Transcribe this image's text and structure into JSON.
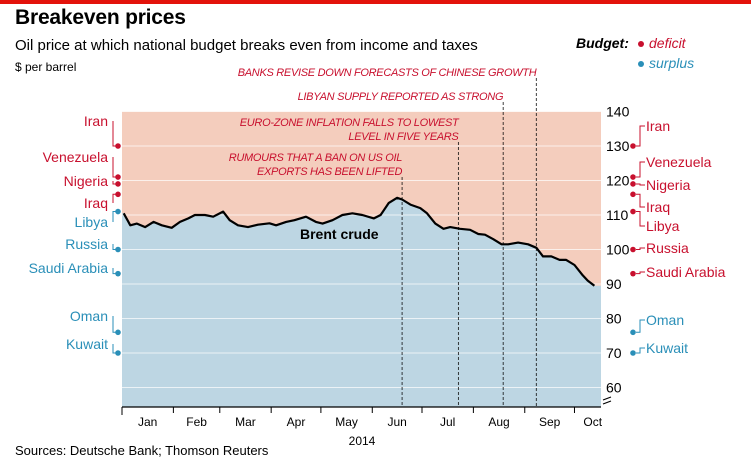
{
  "title": "Breakeven prices",
  "subtitle": "Oil price at which national budget breaks even from income and taxes",
  "units": "$ per barrel",
  "source": "Sources: Deutsche Bank; Thomson Reuters",
  "legend": {
    "title": "Budget:",
    "items": [
      {
        "label": "deficit",
        "color": "#c8102e"
      },
      {
        "label": "surplus",
        "color": "#2a8fb8"
      }
    ]
  },
  "chart_data": {
    "type": "line",
    "title": "Breakeven prices",
    "ylim": [
      55,
      140
    ],
    "yticks": [
      60,
      70,
      80,
      90,
      100,
      110,
      120,
      130,
      140
    ],
    "y_axis_broken": true,
    "x_year_label": "2014",
    "x_months": [
      "Jan",
      "Feb",
      "Mar",
      "Apr",
      "May",
      "Jun",
      "Jul",
      "Aug",
      "Sep",
      "Oct"
    ],
    "series": [
      {
        "name": "Brent crude",
        "x": [
          "2014-01-02",
          "2014-01-06",
          "2014-01-10",
          "2014-01-15",
          "2014-01-20",
          "2014-01-25",
          "2014-01-31",
          "2014-02-05",
          "2014-02-10",
          "2014-02-14",
          "2014-02-20",
          "2014-02-25",
          "2014-03-03",
          "2014-03-07",
          "2014-03-12",
          "2014-03-18",
          "2014-03-24",
          "2014-03-31",
          "2014-04-04",
          "2014-04-10",
          "2014-04-15",
          "2014-04-22",
          "2014-04-28",
          "2014-05-02",
          "2014-05-08",
          "2014-05-14",
          "2014-05-20",
          "2014-05-26",
          "2014-06-02",
          "2014-06-06",
          "2014-06-11",
          "2014-06-16",
          "2014-06-19",
          "2014-06-24",
          "2014-06-30",
          "2014-07-04",
          "2014-07-09",
          "2014-07-14",
          "2014-07-18",
          "2014-07-24",
          "2014-07-30",
          "2014-08-04",
          "2014-08-08",
          "2014-08-13",
          "2014-08-18",
          "2014-08-22",
          "2014-08-28",
          "2014-09-03",
          "2014-09-08",
          "2014-09-12",
          "2014-09-17",
          "2014-09-22",
          "2014-09-26",
          "2014-10-01",
          "2014-10-06",
          "2014-10-09",
          "2014-10-13"
        ],
        "y": [
          110.5,
          107.0,
          107.5,
          106.5,
          108.0,
          107.0,
          106.3,
          108.0,
          109.0,
          110.0,
          110.0,
          109.5,
          111.0,
          108.5,
          107.0,
          106.5,
          107.2,
          107.6,
          107.0,
          108.0,
          108.5,
          109.5,
          108.0,
          107.5,
          108.5,
          110.0,
          110.5,
          110.0,
          109.0,
          110.0,
          113.5,
          115.0,
          114.5,
          113.0,
          112.0,
          110.5,
          107.5,
          106.0,
          106.5,
          106.0,
          105.7,
          104.5,
          104.3,
          103.0,
          101.5,
          101.5,
          102.0,
          101.5,
          100.5,
          98.0,
          98.0,
          97.0,
          97.0,
          95.5,
          92.5,
          91.0,
          89.5
        ]
      }
    ],
    "breakeven": {
      "label_deficit": "deficit",
      "label_surplus": "surplus",
      "countries_left": [
        {
          "name": "Iran",
          "value": 130,
          "status": "deficit"
        },
        {
          "name": "Venezuela",
          "value": 121,
          "status": "deficit"
        },
        {
          "name": "Nigeria",
          "value": 119,
          "status": "deficit"
        },
        {
          "name": "Iraq",
          "value": 116,
          "status": "deficit"
        },
        {
          "name": "Libya",
          "value": 111,
          "status": "surplus"
        },
        {
          "name": "Russia",
          "value": 100,
          "status": "surplus"
        },
        {
          "name": "Saudi Arabia",
          "value": 93,
          "status": "surplus"
        },
        {
          "name": "Oman",
          "value": 76,
          "status": "surplus"
        },
        {
          "name": "Kuwait",
          "value": 70,
          "status": "surplus"
        }
      ],
      "countries_right": [
        {
          "name": "Iran",
          "value": 130,
          "status": "deficit"
        },
        {
          "name": "Venezuela",
          "value": 121,
          "status": "deficit"
        },
        {
          "name": "Nigeria",
          "value": 119,
          "status": "deficit"
        },
        {
          "name": "Iraq",
          "value": 116,
          "status": "deficit"
        },
        {
          "name": "Libya",
          "value": 111,
          "status": "deficit"
        },
        {
          "name": "Russia",
          "value": 100,
          "status": "deficit"
        },
        {
          "name": "Saudi Arabia",
          "value": 93,
          "status": "deficit"
        },
        {
          "name": "Oman",
          "value": 76,
          "status": "surplus"
        },
        {
          "name": "Kuwait",
          "value": 70,
          "status": "surplus"
        }
      ]
    },
    "annotations": [
      {
        "date": "2014-06-19",
        "lines": [
          "RUMOURS THAT A BAN ON US OIL",
          "EXPORTS HAS BEEN LIFTED"
        ],
        "value": 114
      },
      {
        "date": "2014-07-23",
        "lines": [
          "EURO-ZONE INFLATION FALLS TO LOWEST",
          "LEVEL IN FIVE YEARS"
        ],
        "value": 106
      },
      {
        "date": "2014-08-19",
        "lines": [
          "LIBYAN SUPPLY REPORTED AS STRONG"
        ],
        "value": 101
      },
      {
        "date": "2014-09-08",
        "lines": [
          "BANKS REVISE DOWN FORECASTS OF CHINESE GROWTH"
        ],
        "value": 97
      }
    ],
    "series_label": "Brent crude",
    "colors": {
      "deficit_bg": "#f4cdbd",
      "surplus_bg": "#bdd6e3",
      "deficit_text": "#c8102e",
      "surplus_text": "#2a8fb8",
      "line": "#000000"
    }
  }
}
